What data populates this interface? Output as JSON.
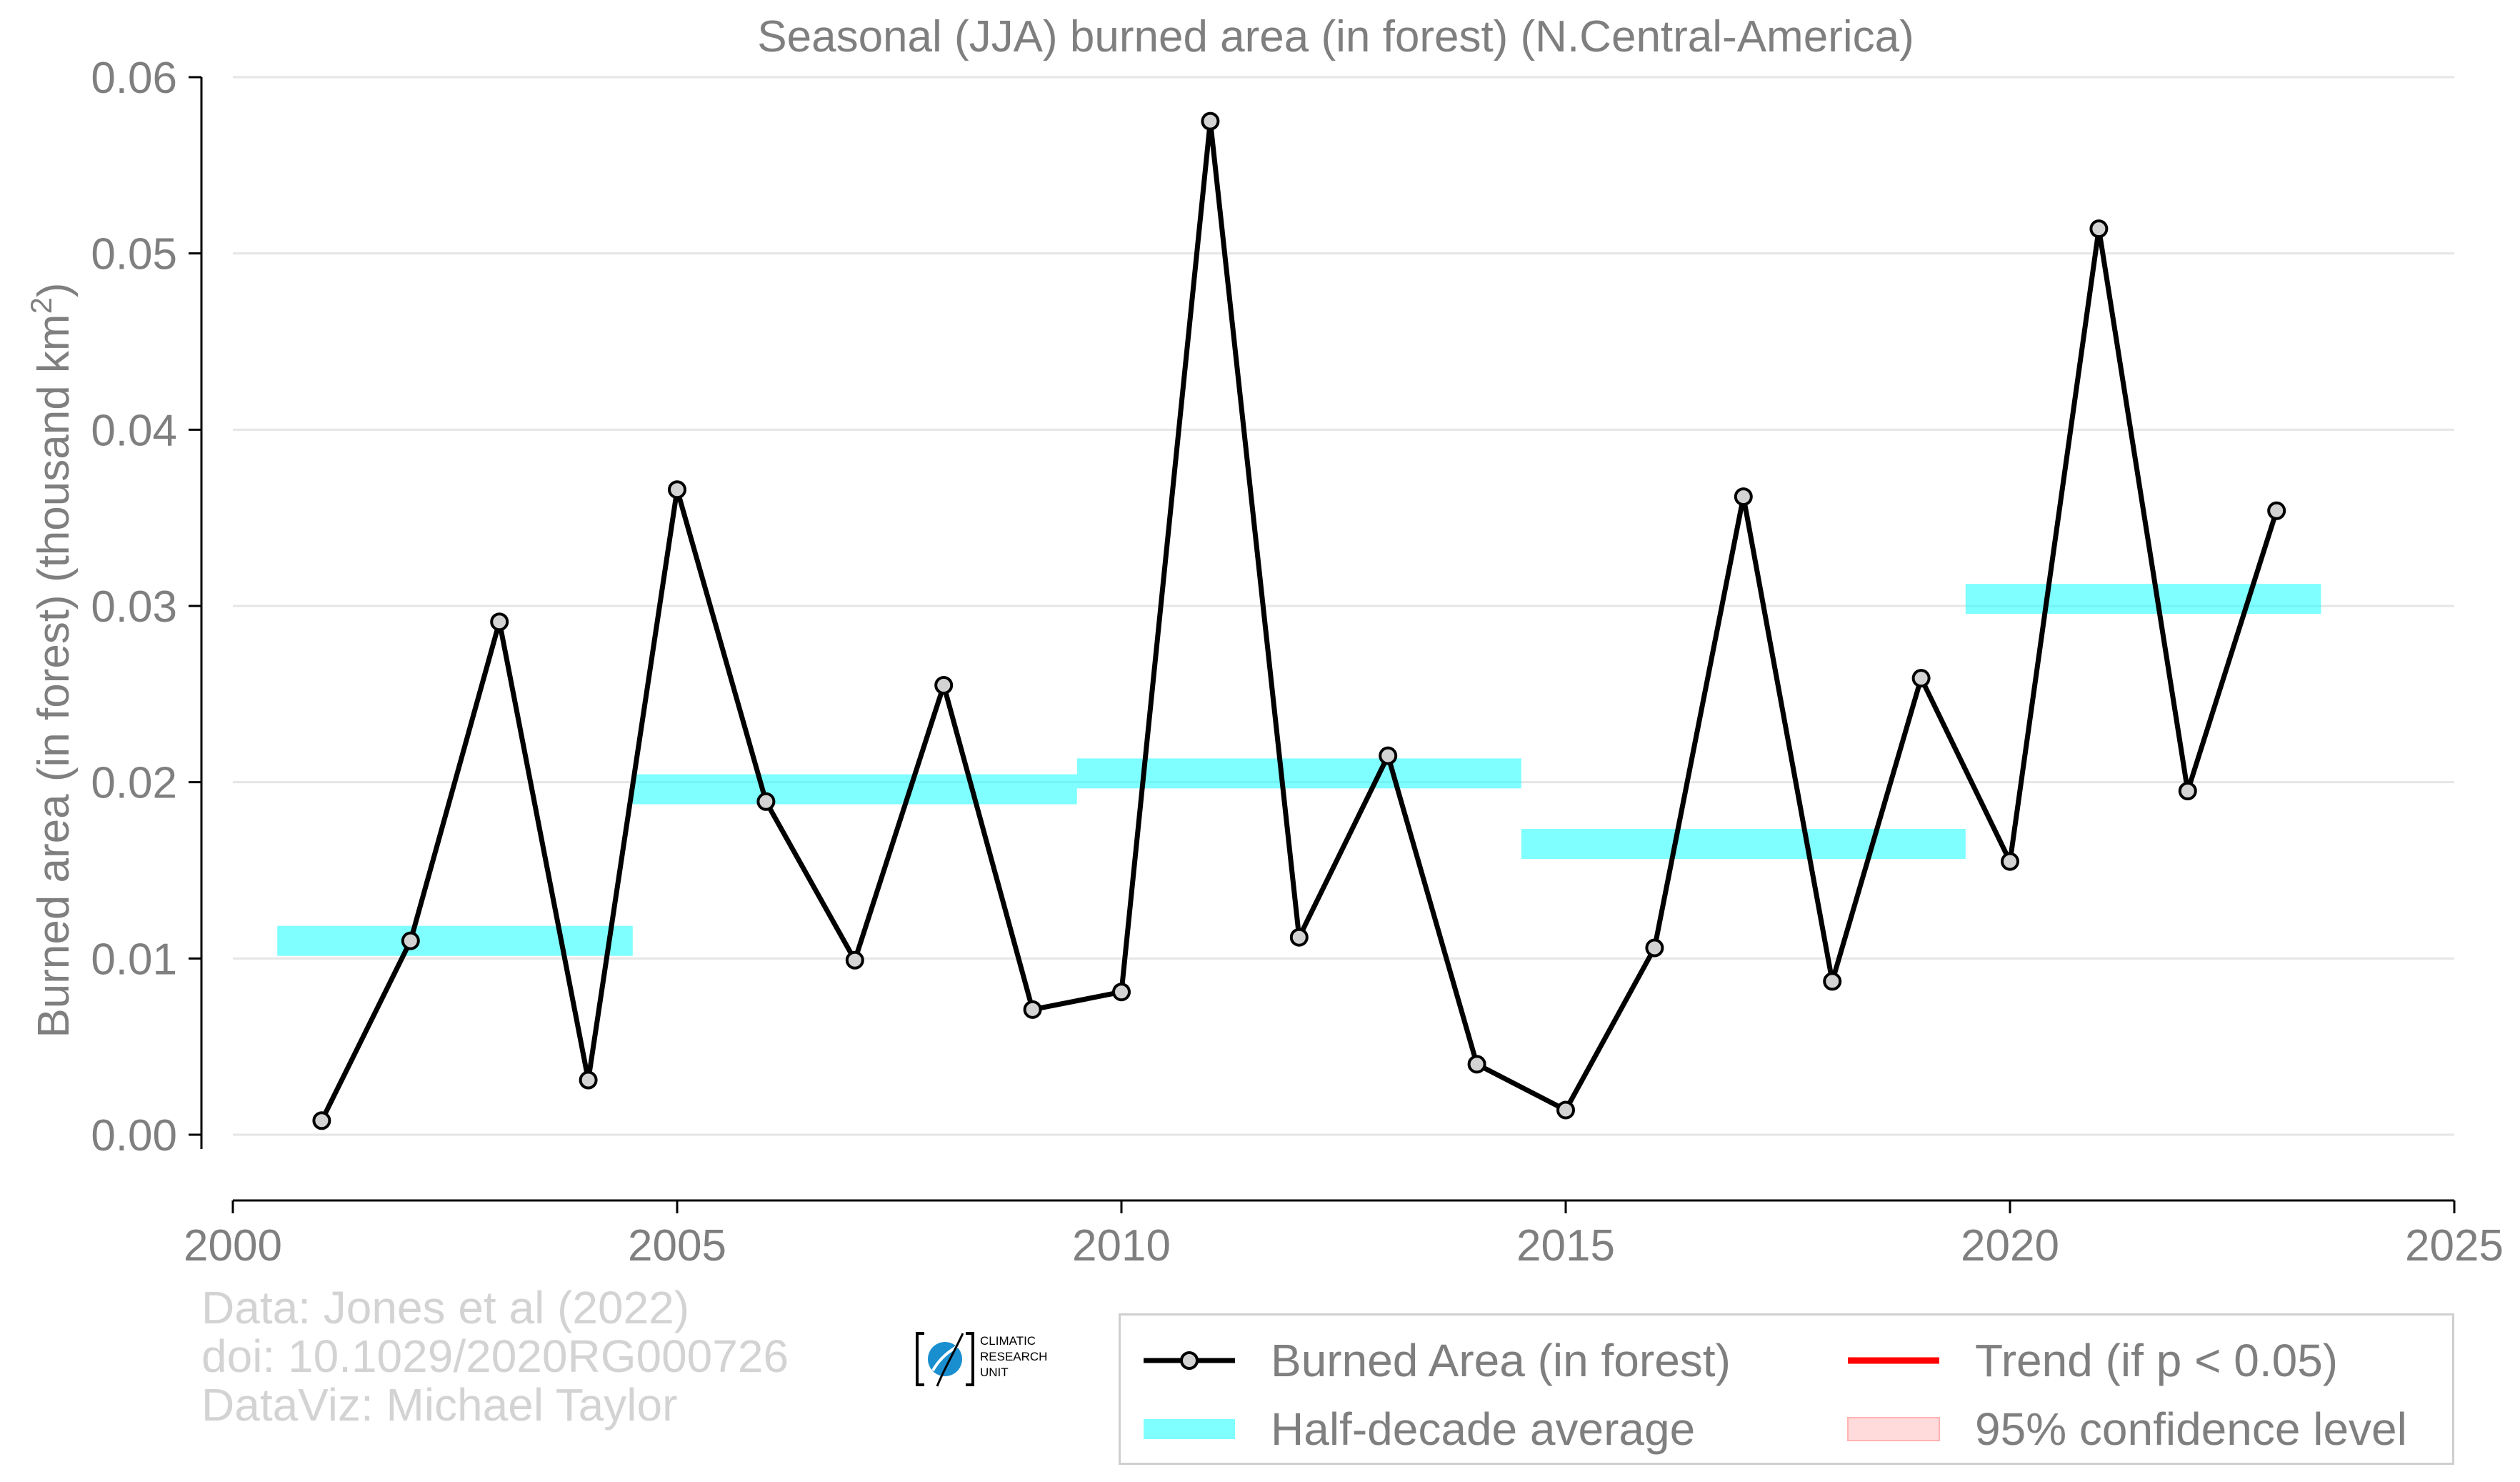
{
  "chart_data": {
    "type": "line",
    "title": "Seasonal (JJA) burned area (in forest) (N.Central-America)",
    "ylabel": "Burned area (in forest) (thousand km",
    "ylabel_sup": "2",
    "ylabel_end": ")",
    "xlabel": "",
    "xlim": [
      2000,
      2025
    ],
    "ylim": [
      0.0,
      0.06
    ],
    "x_ticks": [
      "2000",
      "2005",
      "2010",
      "2015",
      "2020",
      "2025"
    ],
    "y_ticks": [
      "0.00",
      "0.01",
      "0.02",
      "0.03",
      "0.04",
      "0.05",
      "0.06"
    ],
    "grid": "horizontal",
    "legend_position": "bottom-right",
    "series": [
      {
        "name": "Burned Area (in forest)",
        "color": "#000000",
        "marker_fill": "#d3d3d3",
        "x": [
          2001,
          2002,
          2003,
          2004,
          2005,
          2006,
          2007,
          2008,
          2009,
          2010,
          2011,
          2012,
          2013,
          2014,
          2015,
          2016,
          2017,
          2018,
          2019,
          2020,
          2021,
          2022,
          2023
        ],
        "values": [
          0.0008,
          0.011,
          0.0291,
          0.0031,
          0.0366,
          0.0189,
          0.0099,
          0.0255,
          0.0071,
          0.0081,
          0.0575,
          0.0112,
          0.0215,
          0.004,
          0.0014,
          0.0106,
          0.0362,
          0.0087,
          0.0259,
          0.0155,
          0.0514,
          0.0195,
          0.0354
        ]
      }
    ],
    "half_decade_average": {
      "name": "Half-decade average",
      "color": "#00ffff",
      "segments": [
        {
          "x_start": 2000.5,
          "x_end": 2004.5,
          "value": 0.011
        },
        {
          "x_start": 2004.5,
          "x_end": 2009.5,
          "value": 0.0196
        },
        {
          "x_start": 2009.5,
          "x_end": 2014.5,
          "value": 0.0205
        },
        {
          "x_start": 2014.5,
          "x_end": 2019.5,
          "value": 0.0165
        },
        {
          "x_start": 2019.5,
          "x_end": 2023.5,
          "value": 0.0304
        }
      ]
    },
    "legend": [
      {
        "label": "Burned Area (in forest)",
        "kind": "line-marker",
        "color": "#000000"
      },
      {
        "label": "Trend (if p < 0.05)",
        "kind": "line",
        "color": "#ff0000"
      },
      {
        "label": "Half-decade average",
        "kind": "band",
        "color": "#00ffff"
      },
      {
        "label": "95% confidence level",
        "kind": "band",
        "color": "#ffcccc"
      }
    ]
  },
  "credits": {
    "line1": "Data: Jones et al (2022)",
    "line2": "doi: 10.1029/2020RG000726",
    "line3": "DataViz: Michael Taylor"
  },
  "logo": {
    "line1": "CLIMATIC",
    "line2": "RESEARCH",
    "line3": "UNIT",
    "color": "#1a8fd0"
  },
  "colors": {
    "text": "#7f7f7f",
    "grid": "#e6e6e6",
    "axis": "#000000"
  }
}
